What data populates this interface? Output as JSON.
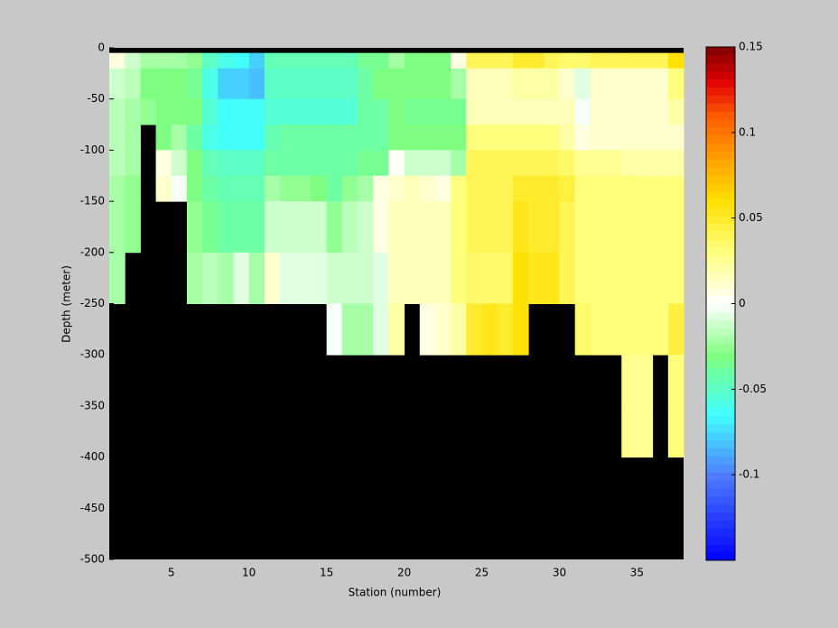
{
  "chart_data": {
    "type": "heatmap",
    "xlabel": "Station (number)",
    "ylabel": "Depth (meter)",
    "x_edges": [
      1,
      2,
      3,
      4,
      5,
      6,
      7,
      8,
      9,
      10,
      11,
      12,
      13,
      14,
      15,
      16,
      17,
      18,
      19,
      20,
      21,
      22,
      23,
      24,
      25,
      26,
      27,
      28,
      29,
      30,
      31,
      32,
      33,
      34,
      35,
      36,
      37,
      38
    ],
    "y_edges": [
      0,
      -5,
      -20,
      -50,
      -75,
      -100,
      -125,
      -150,
      -200,
      -250,
      -300,
      -350,
      -400,
      -500
    ],
    "z": [
      [
        null,
        null,
        null,
        null,
        null,
        null,
        null,
        null,
        null,
        null,
        null,
        null,
        null,
        null,
        null,
        null,
        null,
        null,
        null,
        null,
        null,
        null,
        null,
        null,
        null,
        null,
        null,
        null,
        null,
        null,
        null,
        null,
        null,
        null,
        null,
        null,
        null
      ],
      [
        0.005,
        -0.01,
        -0.02,
        -0.02,
        -0.02,
        -0.025,
        -0.05,
        -0.06,
        -0.065,
        -0.075,
        -0.045,
        -0.045,
        -0.045,
        -0.045,
        -0.045,
        -0.045,
        -0.035,
        -0.035,
        -0.02,
        -0.03,
        -0.03,
        -0.03,
        0.005,
        0.04,
        0.04,
        0.04,
        0.05,
        0.05,
        0.04,
        0.035,
        0.035,
        0.04,
        0.04,
        0.04,
        0.04,
        0.04,
        0.06
      ],
      [
        -0.01,
        -0.015,
        -0.03,
        -0.03,
        -0.03,
        -0.035,
        -0.06,
        -0.075,
        -0.075,
        -0.08,
        -0.05,
        -0.05,
        -0.05,
        -0.05,
        -0.05,
        -0.05,
        -0.04,
        -0.03,
        -0.03,
        -0.03,
        -0.03,
        -0.03,
        -0.02,
        0.015,
        0.015,
        0.015,
        0.02,
        0.02,
        0.02,
        0.01,
        -0.005,
        0.012,
        0.012,
        0.012,
        0.012,
        0.012,
        0.03
      ],
      [
        -0.015,
        -0.02,
        -0.025,
        -0.03,
        -0.03,
        -0.03,
        -0.055,
        -0.065,
        -0.065,
        -0.065,
        -0.055,
        -0.055,
        -0.055,
        -0.055,
        -0.055,
        -0.055,
        -0.04,
        -0.04,
        -0.03,
        -0.035,
        -0.035,
        -0.035,
        -0.035,
        0.015,
        0.015,
        0.015,
        0.015,
        0.015,
        0.015,
        0.015,
        0,
        0.01,
        0.01,
        0.01,
        0.01,
        0.01,
        0.02
      ],
      [
        -0.015,
        -0.02,
        null,
        -0.03,
        -0.02,
        -0.04,
        -0.06,
        -0.065,
        -0.065,
        -0.065,
        -0.045,
        -0.04,
        -0.04,
        -0.04,
        -0.04,
        -0.04,
        -0.04,
        -0.04,
        -0.03,
        -0.03,
        -0.03,
        -0.03,
        -0.03,
        0.03,
        0.03,
        0.03,
        0.03,
        0.03,
        0.03,
        0.02,
        0.005,
        0.01,
        0.01,
        0.01,
        0.01,
        0.01,
        0.01
      ],
      [
        -0.015,
        -0.02,
        null,
        0.005,
        -0.01,
        -0.03,
        -0.045,
        -0.05,
        -0.05,
        -0.05,
        -0.04,
        -0.04,
        -0.04,
        -0.04,
        -0.04,
        -0.04,
        -0.035,
        -0.035,
        0.002,
        -0.01,
        -0.01,
        -0.01,
        -0.02,
        0.04,
        0.04,
        0.04,
        0.04,
        0.04,
        0.04,
        0.035,
        0.025,
        0.025,
        0.025,
        0.02,
        0.02,
        0.02,
        0.02
      ],
      [
        -0.02,
        -0.025,
        null,
        0.01,
        0,
        -0.03,
        -0.04,
        -0.045,
        -0.045,
        -0.045,
        -0.02,
        -0.025,
        -0.025,
        -0.03,
        -0.04,
        -0.025,
        -0.02,
        0.005,
        0.01,
        0.015,
        0.01,
        0.005,
        0.03,
        0.04,
        0.04,
        0.04,
        0.05,
        0.05,
        0.05,
        0.045,
        0.03,
        0.03,
        0.03,
        0.03,
        0.03,
        0.03,
        0.03
      ],
      [
        -0.02,
        -0.025,
        null,
        null,
        null,
        -0.025,
        -0.035,
        -0.04,
        -0.04,
        -0.04,
        -0.01,
        -0.01,
        -0.01,
        -0.01,
        -0.025,
        -0.015,
        -0.01,
        0.005,
        0.015,
        0.015,
        0.015,
        0.015,
        0.03,
        0.04,
        0.04,
        0.04,
        0.055,
        0.05,
        0.05,
        0.04,
        0.03,
        0.03,
        0.03,
        0.03,
        0.03,
        0.03,
        0.03
      ],
      [
        -0.02,
        null,
        null,
        null,
        null,
        -0.02,
        -0.015,
        -0.02,
        -0.005,
        -0.02,
        0.01,
        -0.005,
        -0.005,
        -0.005,
        -0.01,
        -0.01,
        -0.01,
        -0.005,
        0.015,
        0.015,
        0.015,
        0.015,
        0.03,
        0.035,
        0.035,
        0.035,
        0.06,
        0.055,
        0.055,
        0.04,
        0.03,
        0.03,
        0.03,
        0.03,
        0.03,
        0.03,
        0.03
      ],
      [
        null,
        null,
        null,
        null,
        null,
        null,
        null,
        null,
        null,
        null,
        null,
        null,
        null,
        null,
        0,
        -0.02,
        -0.02,
        -0.005,
        0.02,
        null,
        0.005,
        0.01,
        0.02,
        0.05,
        0.055,
        0.05,
        0.06,
        null,
        null,
        null,
        0.035,
        0.03,
        0.03,
        0.03,
        0.03,
        0.03,
        0.045
      ],
      [
        null,
        null,
        null,
        null,
        null,
        null,
        null,
        null,
        null,
        null,
        null,
        null,
        null,
        null,
        null,
        null,
        null,
        null,
        null,
        null,
        null,
        null,
        null,
        null,
        null,
        null,
        null,
        null,
        null,
        null,
        null,
        null,
        null,
        0.025,
        0.025,
        null,
        0.03
      ],
      [
        null,
        null,
        null,
        null,
        null,
        null,
        null,
        null,
        null,
        null,
        null,
        null,
        null,
        null,
        null,
        null,
        null,
        null,
        null,
        null,
        null,
        null,
        null,
        null,
        null,
        null,
        null,
        null,
        null,
        null,
        null,
        null,
        null,
        0.025,
        0.025,
        null,
        0.03
      ],
      [
        null,
        null,
        null,
        null,
        null,
        null,
        null,
        null,
        null,
        null,
        null,
        null,
        null,
        null,
        null,
        null,
        null,
        null,
        null,
        null,
        null,
        null,
        null,
        null,
        null,
        null,
        null,
        null,
        null,
        null,
        null,
        null,
        null,
        null,
        null,
        null,
        null
      ]
    ],
    "xlim": [
      1,
      38
    ],
    "xticks": [
      5,
      10,
      15,
      20,
      25,
      30,
      35
    ],
    "ylim": [
      -500,
      0
    ],
    "yticks": [
      0,
      -50,
      -100,
      -150,
      -200,
      -250,
      -300,
      -350,
      -400,
      -450,
      -500
    ],
    "clim": [
      -0.15,
      0.15
    ],
    "cticks": [
      0.15,
      0.1,
      0.05,
      0,
      -0.05,
      -0.1
    ],
    "mask_color": "#000000",
    "colormap": [
      [
        -0.15,
        "#0000ff"
      ],
      [
        -0.1,
        "#4f7dff"
      ],
      [
        -0.065,
        "#40ffff"
      ],
      [
        -0.03,
        "#80ff80"
      ],
      [
        0,
        "#ffffff"
      ],
      [
        0.03,
        "#ffff80"
      ],
      [
        0.06,
        "#ffe000"
      ],
      [
        0.085,
        "#ffa000"
      ],
      [
        0.11,
        "#ff5a00"
      ],
      [
        0.13,
        "#e00000"
      ],
      [
        0.15,
        "#800000"
      ]
    ]
  }
}
